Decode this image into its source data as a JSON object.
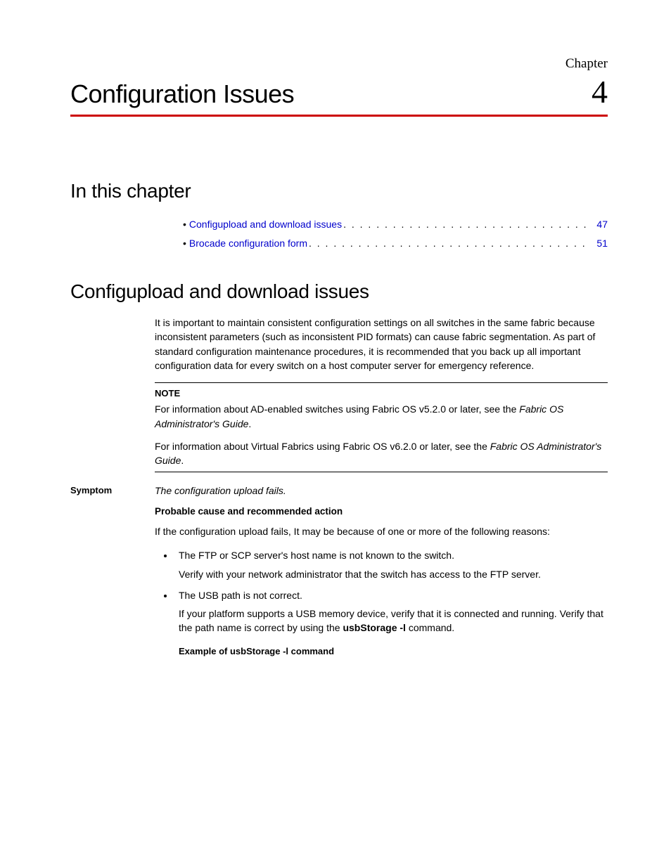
{
  "header": {
    "chapter_label": "Chapter",
    "title": "Configuration Issues",
    "number": "4"
  },
  "colors": {
    "rule": "#cc0000",
    "link": "#0000cc",
    "text": "#000000",
    "background": "#ffffff"
  },
  "sections": {
    "in_this_chapter": {
      "heading": "In this chapter",
      "items": [
        {
          "label": "Configupload and download issues",
          "page": "47"
        },
        {
          "label": "Brocade configuration form",
          "page": "51"
        }
      ]
    },
    "configupload": {
      "heading": "Configupload and download issues",
      "intro": "It is important to maintain consistent configuration settings on all switches in the same fabric because inconsistent parameters (such as inconsistent PID formats) can cause fabric segmentation. As part of standard configuration maintenance procedures, it is recommended that you back up all important configuration data for every switch on a host computer server for emergency reference.",
      "note": {
        "label": "NOTE",
        "p1_a": "For information about AD-enabled switches using Fabric OS v5.2.0 or later, see the ",
        "p1_i": "Fabric OS Administrator's Guide",
        "p1_b": ".",
        "p2_a": "For information about Virtual Fabrics using Fabric OS v6.2.0 or later, see the ",
        "p2_i": "Fabric OS Administrator's Guide",
        "p2_b": "."
      },
      "symptom": {
        "label": "Symptom",
        "text": "The configuration upload fails."
      },
      "probable": {
        "heading": "Probable cause and recommended action",
        "lead": "If the configuration upload fails, It may be because of one or more of the following reasons:",
        "causes": [
          {
            "title": "The FTP or SCP server's host name is not known to the switch.",
            "detail": "Verify with your network administrator that the switch has access to the FTP server."
          },
          {
            "title": "The USB path is not correct.",
            "detail_a": "If your platform supports a USB memory device, verify that it is connected and running. Verify that the path name is correct by using the ",
            "detail_cmd": "usbStorage -l",
            "detail_b": " command."
          }
        ],
        "example_label": "Example  of usbStorage -l command"
      }
    }
  }
}
